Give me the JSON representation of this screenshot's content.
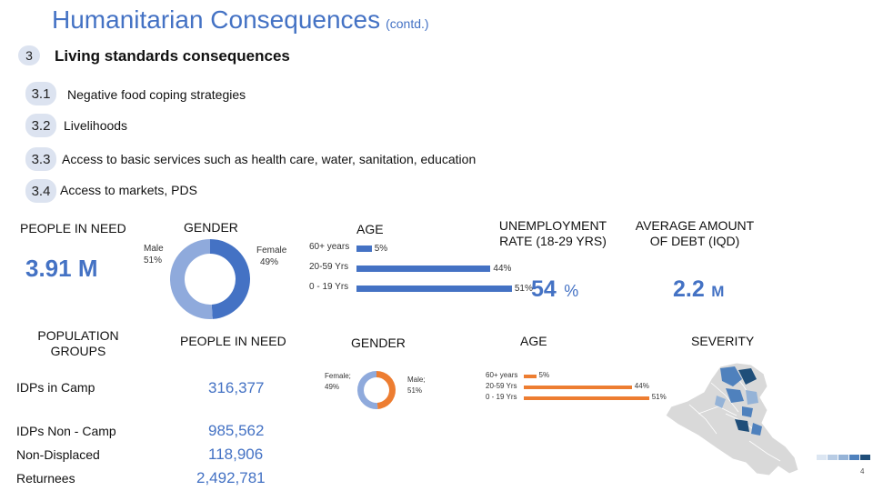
{
  "header": {
    "title": "Humanitarian Consequences",
    "subtitle": "(contd.)"
  },
  "section": {
    "number": "3",
    "title": "Living standards consequences"
  },
  "subitems": [
    {
      "number": "3.1",
      "label": "Negative food coping strategies"
    },
    {
      "number": "3.2",
      "label": "Livelihoods"
    },
    {
      "number": "3.3",
      "label": "Access to basic services such as health care, water, sanitation, education"
    },
    {
      "number": "3.4",
      "label": "Access to markets, PDS"
    }
  ],
  "summary": {
    "people_in_need_label": "PEOPLE IN NEED",
    "people_in_need_value": "3.91 M",
    "gender_label": "GENDER",
    "gender": {
      "male_label": "Male",
      "male_pct": "51%",
      "female_label": "Female",
      "female_pct": "49%",
      "male_value": 51,
      "female_value": 49
    },
    "age_label": "AGE",
    "age": [
      {
        "label": "60+ years",
        "value": 5,
        "display": "5%"
      },
      {
        "label": "20-59 Yrs",
        "value": 44,
        "display": "44%"
      },
      {
        "label": "0 - 19 Yrs",
        "value": 51,
        "display": "51%"
      }
    ],
    "unemployment_label": "UNEMPLOYMENT RATE (18-29 YRS)",
    "unemployment_value": "54",
    "unemployment_unit": "%",
    "debt_label": "AVERAGE AMOUNT OF DEBT (IQD)",
    "debt_value": "2.2",
    "debt_unit": "M"
  },
  "groups_table": {
    "col_groups": "POPULATION GROUPS",
    "col_pin": "PEOPLE IN NEED",
    "col_gender": "GENDER",
    "col_age": "AGE",
    "col_severity": "SEVERITY",
    "rows": [
      {
        "label": "IDPs in Camp",
        "value": "316,377"
      },
      {
        "label": "IDPs Non - Camp",
        "value": "985,562"
      },
      {
        "label": "Non-Displaced",
        "value": "118,906"
      },
      {
        "label": "Returnees",
        "value": "2,492,781"
      }
    ],
    "gender": {
      "female_text": "Female; 49%",
      "male_text": "Male; 51%",
      "female_value": 49,
      "male_value": 51
    },
    "age": [
      {
        "label": "60+ years",
        "value": 5,
        "display": "5%"
      },
      {
        "label": "20-59 Yrs",
        "value": 44,
        "display": "44%"
      },
      {
        "label": "0 - 19 Yrs",
        "value": 51,
        "display": "51%"
      }
    ]
  },
  "severity_scale": {
    "colors": [
      "#dce6f2",
      "#b8cce4",
      "#95b3d7",
      "#4f81bd",
      "#1f4e79"
    ]
  },
  "page_number": "4",
  "colors": {
    "accent": "#4472c4",
    "donut_light": "#8faadc",
    "orange": "#ed7d31",
    "map_gray": "#d9d9d9"
  }
}
